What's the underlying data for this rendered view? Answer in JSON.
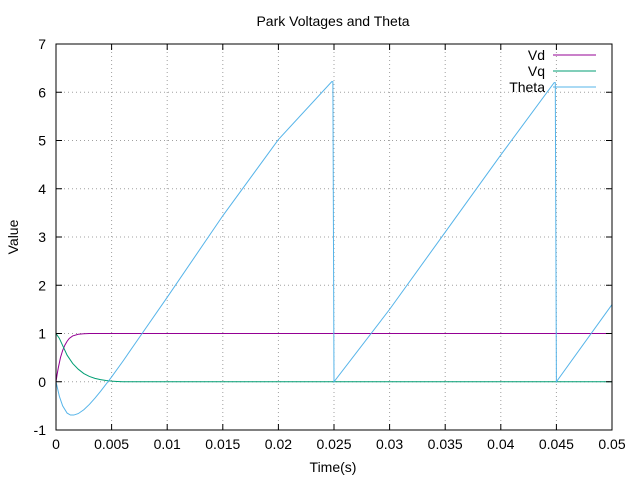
{
  "chart_data": {
    "type": "line",
    "title": "Park Voltages and Theta",
    "xlabel": "Time(s)",
    "ylabel": "Value",
    "xlim": [
      0,
      0.05
    ],
    "ylim": [
      -1,
      7
    ],
    "x_ticks": [
      0,
      0.005,
      0.01,
      0.015,
      0.02,
      0.025,
      0.03,
      0.035,
      0.04,
      0.045,
      0.05
    ],
    "x_tick_labels": [
      "0",
      "0.005",
      "0.01",
      "0.015",
      "0.02",
      "0.025",
      "0.03",
      "0.035",
      "0.04",
      "0.045",
      "0.05"
    ],
    "y_ticks": [
      -1,
      0,
      1,
      2,
      3,
      4,
      5,
      6,
      7
    ],
    "y_tick_labels": [
      "-1",
      "0",
      "1",
      "2",
      "3",
      "4",
      "5",
      "6",
      "7"
    ],
    "grid": true,
    "legend_position": "top-right",
    "series": [
      {
        "name": "Vd",
        "color": "#940094",
        "x": [
          0,
          0.0001,
          0.0002,
          0.0004,
          0.0006,
          0.0008,
          0.001,
          0.0012,
          0.0015,
          0.002,
          0.0025,
          0.003,
          0.004,
          0.005,
          0.007,
          0.01,
          0.02,
          0.03,
          0.04,
          0.05
        ],
        "y": [
          0,
          0.15,
          0.28,
          0.5,
          0.65,
          0.76,
          0.84,
          0.9,
          0.95,
          0.985,
          0.995,
          1.0,
          1.0,
          1.0,
          1.0,
          1.0,
          1.0,
          1.0,
          1.0,
          1.0
        ]
      },
      {
        "name": "Vq",
        "color": "#009e73",
        "x": [
          0,
          0.0003,
          0.0006,
          0.001,
          0.0015,
          0.002,
          0.0025,
          0.003,
          0.0035,
          0.004,
          0.0045,
          0.005,
          0.0055,
          0.006,
          0.007,
          0.01,
          0.02,
          0.03,
          0.04,
          0.05
        ],
        "y": [
          1.0,
          0.9,
          0.75,
          0.55,
          0.38,
          0.26,
          0.17,
          0.11,
          0.07,
          0.045,
          0.025,
          0.012,
          0.005,
          0.0,
          0.0,
          0.0,
          0.0,
          0.0,
          0.0,
          0.0
        ]
      },
      {
        "name": "Theta",
        "color": "#56b4e9",
        "x": [
          0,
          0.0003,
          0.0006,
          0.001,
          0.0013,
          0.0016,
          0.002,
          0.0025,
          0.003,
          0.0035,
          0.004,
          0.005,
          0.006,
          0.0075,
          0.01,
          0.015,
          0.02,
          0.0248,
          0.0249,
          0.025,
          0.03,
          0.035,
          0.04,
          0.0448,
          0.0449,
          0.045,
          0.05
        ],
        "y": [
          0,
          -0.3,
          -0.5,
          -0.65,
          -0.69,
          -0.69,
          -0.66,
          -0.58,
          -0.47,
          -0.34,
          -0.2,
          0.1,
          0.42,
          0.92,
          1.75,
          3.44,
          5.02,
          6.22,
          6.22,
          0,
          1.5,
          3.1,
          4.7,
          6.2,
          6.2,
          0,
          1.6
        ]
      }
    ]
  }
}
